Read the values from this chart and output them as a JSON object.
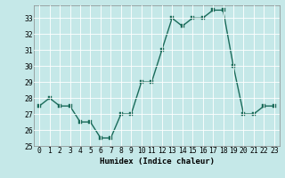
{
  "x": [
    0,
    1,
    2,
    3,
    4,
    5,
    6,
    7,
    8,
    9,
    10,
    11,
    12,
    13,
    14,
    15,
    16,
    17,
    18,
    19,
    20,
    21,
    22,
    23
  ],
  "y": [
    27.5,
    28,
    27.5,
    27.5,
    26.5,
    26.5,
    25.5,
    25.5,
    27,
    27,
    29,
    29,
    31,
    33,
    32.5,
    33,
    33,
    33.5,
    33.5,
    30,
    27,
    27,
    27.5,
    27.5
  ],
  "line_color": "#1a6b5a",
  "marker_color": "#1a6b5a",
  "bg_color": "#c5e8e8",
  "grid_color": "#ffffff",
  "xlabel": "Humidex (Indice chaleur)",
  "ylim": [
    25,
    33.8
  ],
  "xlim": [
    -0.5,
    23.5
  ],
  "yticks": [
    25,
    26,
    27,
    28,
    29,
    30,
    31,
    32,
    33
  ],
  "xticks": [
    0,
    1,
    2,
    3,
    4,
    5,
    6,
    7,
    8,
    9,
    10,
    11,
    12,
    13,
    14,
    15,
    16,
    17,
    18,
    19,
    20,
    21,
    22,
    23
  ],
  "xlabel_fontsize": 6.5,
  "tick_fontsize": 5.8,
  "linewidth": 1.0,
  "markersize": 2.2
}
